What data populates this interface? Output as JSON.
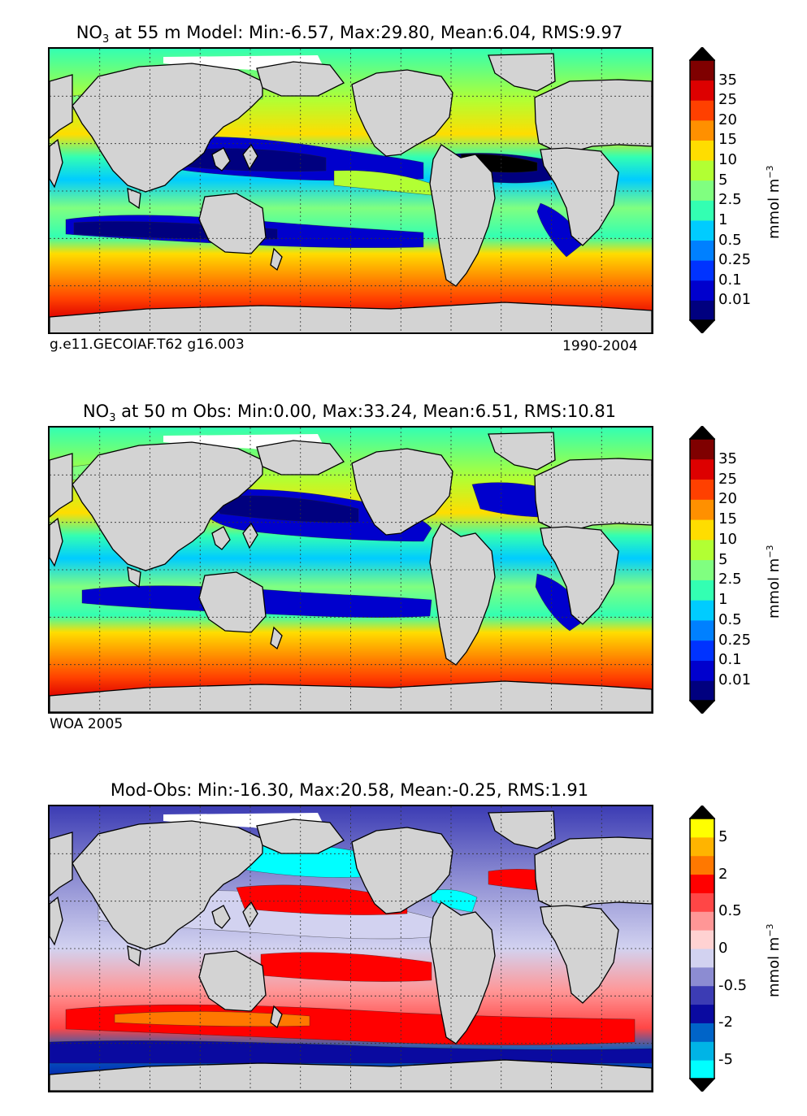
{
  "chart_data": [
    {
      "type": "heatmap",
      "title_prefix": "NO",
      "title_sub": "3",
      "title_suffix": " at 55 m Model: Min:-6.57, Max:29.80, Mean:6.04, RMS:9.97",
      "stats": {
        "min": -6.57,
        "max": 29.8,
        "mean": 6.04,
        "rms": 9.97
      },
      "caption_left": "g.e11.GECOIAF.T62 g16.003",
      "caption_right": "1990-2004",
      "colorbar": {
        "unit_text": "mmol m",
        "unit_exp": "−3",
        "levels": [
          "0.01",
          "0.1",
          "0.25",
          "0.5",
          "1",
          "2.5",
          "5",
          "10",
          "15",
          "20",
          "25",
          "35"
        ],
        "colors": [
          "#00007f",
          "#0000cd",
          "#0033ff",
          "#0080ff",
          "#00ccff",
          "#33ffb2",
          "#80ff80",
          "#b2ff33",
          "#ffdd00",
          "#ff9000",
          "#ff4000",
          "#dd0000",
          "#7f0000"
        ],
        "ends": [
          "#000000",
          "#000000"
        ]
      }
    },
    {
      "type": "heatmap",
      "title_prefix": "NO",
      "title_sub": "3",
      "title_suffix": " at 50 m Obs: Min:0.00, Max:33.24, Mean:6.51, RMS:10.81",
      "stats": {
        "min": 0.0,
        "max": 33.24,
        "mean": 6.51,
        "rms": 10.81
      },
      "caption_left": "WOA 2005",
      "caption_right": "",
      "colorbar": {
        "unit_text": "mmol m",
        "unit_exp": "−3",
        "levels": [
          "0.01",
          "0.1",
          "0.25",
          "0.5",
          "1",
          "2.5",
          "5",
          "10",
          "15",
          "20",
          "25",
          "35"
        ],
        "colors": [
          "#00007f",
          "#0000cd",
          "#0033ff",
          "#0080ff",
          "#00ccff",
          "#33ffb2",
          "#80ff80",
          "#b2ff33",
          "#ffdd00",
          "#ff9000",
          "#ff4000",
          "#dd0000",
          "#7f0000"
        ],
        "ends": [
          "#000000",
          "#000000"
        ]
      }
    },
    {
      "type": "heatmap",
      "title_prefix": "Mod-Obs: Min:-16.30, Max:20.58, Mean:-0.25, RMS:1.91",
      "title_sub": "",
      "title_suffix": "",
      "stats": {
        "min": -16.3,
        "max": 20.58,
        "mean": -0.25,
        "rms": 1.91
      },
      "caption_left": "",
      "caption_right": "",
      "colorbar": {
        "unit_text": "mmol m",
        "unit_exp": "−3",
        "levels": [
          "-5",
          "-2",
          "-0.5",
          "0",
          "0.5",
          "2",
          "5"
        ],
        "label_slots": [
          1,
          3,
          5,
          7,
          9,
          11,
          13
        ],
        "colors": [
          "#00ffff",
          "#00b4e6",
          "#0064c8",
          "#0a0aa0",
          "#3c3cb4",
          "#8c8cd2",
          "#d2d2f0",
          "#ffd2d2",
          "#ff9696",
          "#ff4646",
          "#ff0000",
          "#ff7800",
          "#ffb400",
          "#ffff00"
        ],
        "ends": [
          "#000000",
          "#000000"
        ]
      }
    }
  ]
}
